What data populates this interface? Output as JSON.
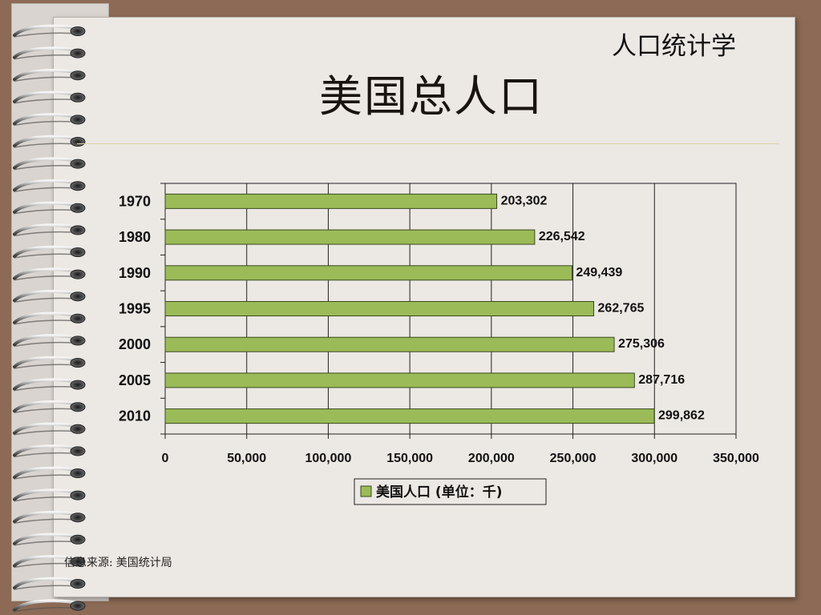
{
  "header": {
    "subtitle": "人口统计学",
    "title": "美国总人口"
  },
  "footer": {
    "source_label": "信息来源:",
    "source_value": "美国统计局"
  },
  "colors": {
    "bar_fill": "#9bbb59",
    "bar_stroke": "#3a4a1c",
    "background": "#8c6a55",
    "paper": "#ece8e4"
  },
  "icons": [
    "spiral-binding-ring"
  ],
  "chart_data": {
    "type": "bar",
    "orientation": "horizontal",
    "categories": [
      "1970",
      "1980",
      "1990",
      "1995",
      "2000",
      "2005",
      "2010"
    ],
    "series": [
      {
        "name": "美国人口 (单位：千)",
        "values": [
          203302,
          226542,
          249439,
          262765,
          275306,
          287716,
          299862
        ]
      }
    ],
    "data_labels": [
      "203,302",
      "226,542",
      "249,439",
      "262,765",
      "275,306",
      "287,716",
      "299,862"
    ],
    "x_ticks": [
      0,
      50000,
      100000,
      150000,
      200000,
      250000,
      300000,
      350000
    ],
    "x_tick_labels": [
      "0",
      "50,000",
      "100,000",
      "150,000",
      "200,000",
      "250,000",
      "300,000",
      "350,000"
    ],
    "xlim": [
      0,
      350000
    ],
    "grid": "vertical",
    "legend_position": "bottom",
    "title": "",
    "xlabel": "",
    "ylabel": ""
  }
}
